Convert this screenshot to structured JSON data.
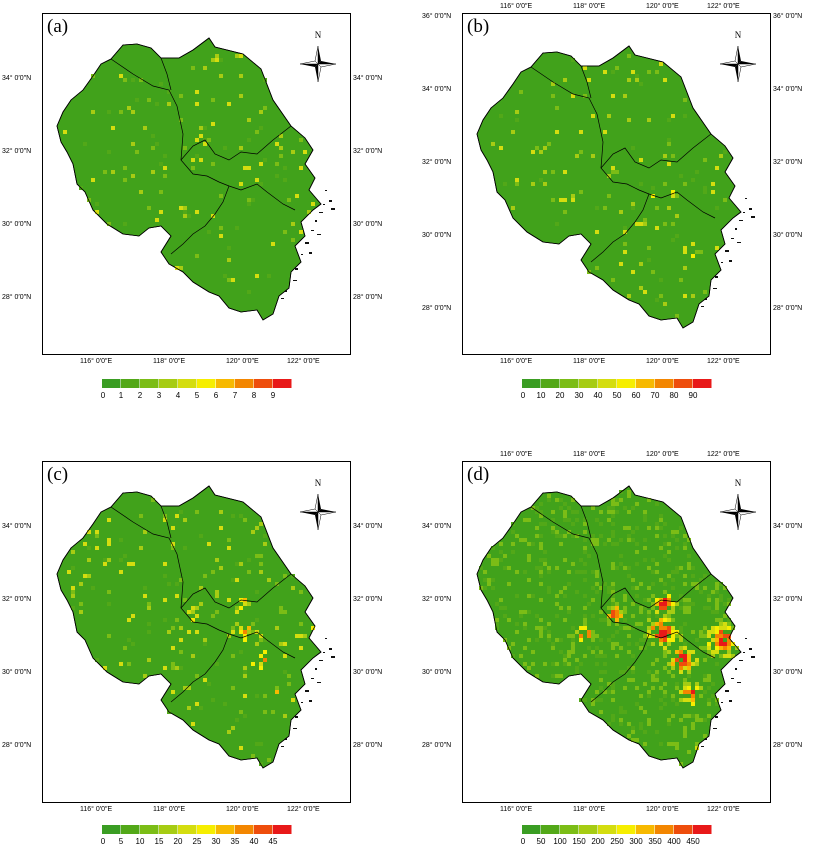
{
  "panels": [
    {
      "label": "(a)",
      "legend": [
        "0",
        "1",
        "2",
        "3",
        "4",
        "5",
        "6",
        "7",
        "8",
        "9"
      ],
      "hotspot": 0.05
    },
    {
      "label": "(b)",
      "legend": [
        "0",
        "10",
        "20",
        "30",
        "40",
        "50",
        "60",
        "70",
        "80",
        "90"
      ],
      "hotspot": 0.08
    },
    {
      "label": "(c)",
      "legend": [
        "0",
        "5",
        "10",
        "15",
        "20",
        "25",
        "30",
        "35",
        "40",
        "45"
      ],
      "hotspot": 0.18
    },
    {
      "label": "(d)",
      "legend": [
        "0",
        "50",
        "100",
        "150",
        "200",
        "250",
        "300",
        "350",
        "400",
        "450"
      ],
      "hotspot": 0.55
    }
  ],
  "lon_ticks": [
    "116° 0′0″E",
    "118° 0′0″E",
    "120° 0′0″E",
    "122° 0′0″E"
  ],
  "lat_ticks": [
    "34° 0′0″N",
    "32° 0′0″N",
    "30° 0′0″N",
    "28° 0′0″N"
  ],
  "lat_ticks_top_right": [
    "36° 0′0″N",
    "34° 0′0″N",
    "32° 0′0″N",
    "30° 0′0″N",
    "28° 0′0″N"
  ],
  "north_label": "N",
  "colors": [
    "#3a9d23",
    "#52a818",
    "#7bbd16",
    "#a6cc13",
    "#d4dd0f",
    "#f6ee00",
    "#f7b900",
    "#f38600",
    "#ee4d0c",
    "#e81919"
  ],
  "land_color": "#41a21b",
  "icons": {
    "north_arrow": "compass-icon"
  }
}
